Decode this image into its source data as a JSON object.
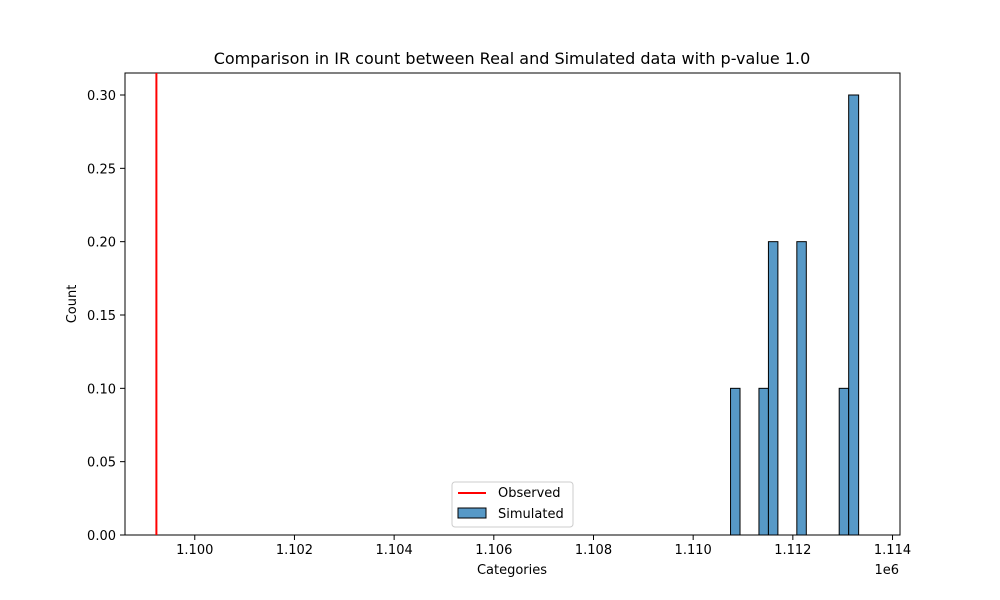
{
  "chart_data": {
    "type": "bar",
    "title": "Comparison in IR count between Real and Simulated data with p-value 1.0",
    "xlabel": "Categories",
    "ylabel": "Count",
    "x_offset_label": "1e6",
    "xlim": [
      1098600,
      1114150
    ],
    "ylim": [
      0,
      0.315
    ],
    "x_ticks": [
      1100000,
      1102000,
      1104000,
      1106000,
      1108000,
      1110000,
      1112000,
      1114000
    ],
    "x_tick_labels": [
      "1.100",
      "1.102",
      "1.104",
      "1.106",
      "1.108",
      "1.110",
      "1.112",
      "1.114"
    ],
    "y_ticks": [
      0,
      0.05,
      0.1,
      0.15,
      0.2,
      0.25,
      0.3
    ],
    "y_tick_labels": [
      "0.00",
      "0.05",
      "0.10",
      "0.15",
      "0.20",
      "0.25",
      "0.30"
    ],
    "observed_line": {
      "name": "Observed",
      "x": 1099230,
      "color": "#ff0000"
    },
    "simulated": {
      "name": "Simulated",
      "color": "#3a87bd",
      "edge_color": "#000000",
      "bins": [
        {
          "x0": 1110750,
          "x1": 1110940,
          "value": 0.1
        },
        {
          "x0": 1111320,
          "x1": 1111510,
          "value": 0.1
        },
        {
          "x0": 1111510,
          "x1": 1111700,
          "value": 0.2
        },
        {
          "x0": 1112080,
          "x1": 1112270,
          "value": 0.2
        },
        {
          "x0": 1112930,
          "x1": 1113120,
          "value": 0.1
        },
        {
          "x0": 1113120,
          "x1": 1113320,
          "value": 0.3
        }
      ]
    },
    "legend": {
      "placement": "lower-center",
      "entries": [
        "Observed",
        "Simulated"
      ]
    },
    "grid": false
  }
}
